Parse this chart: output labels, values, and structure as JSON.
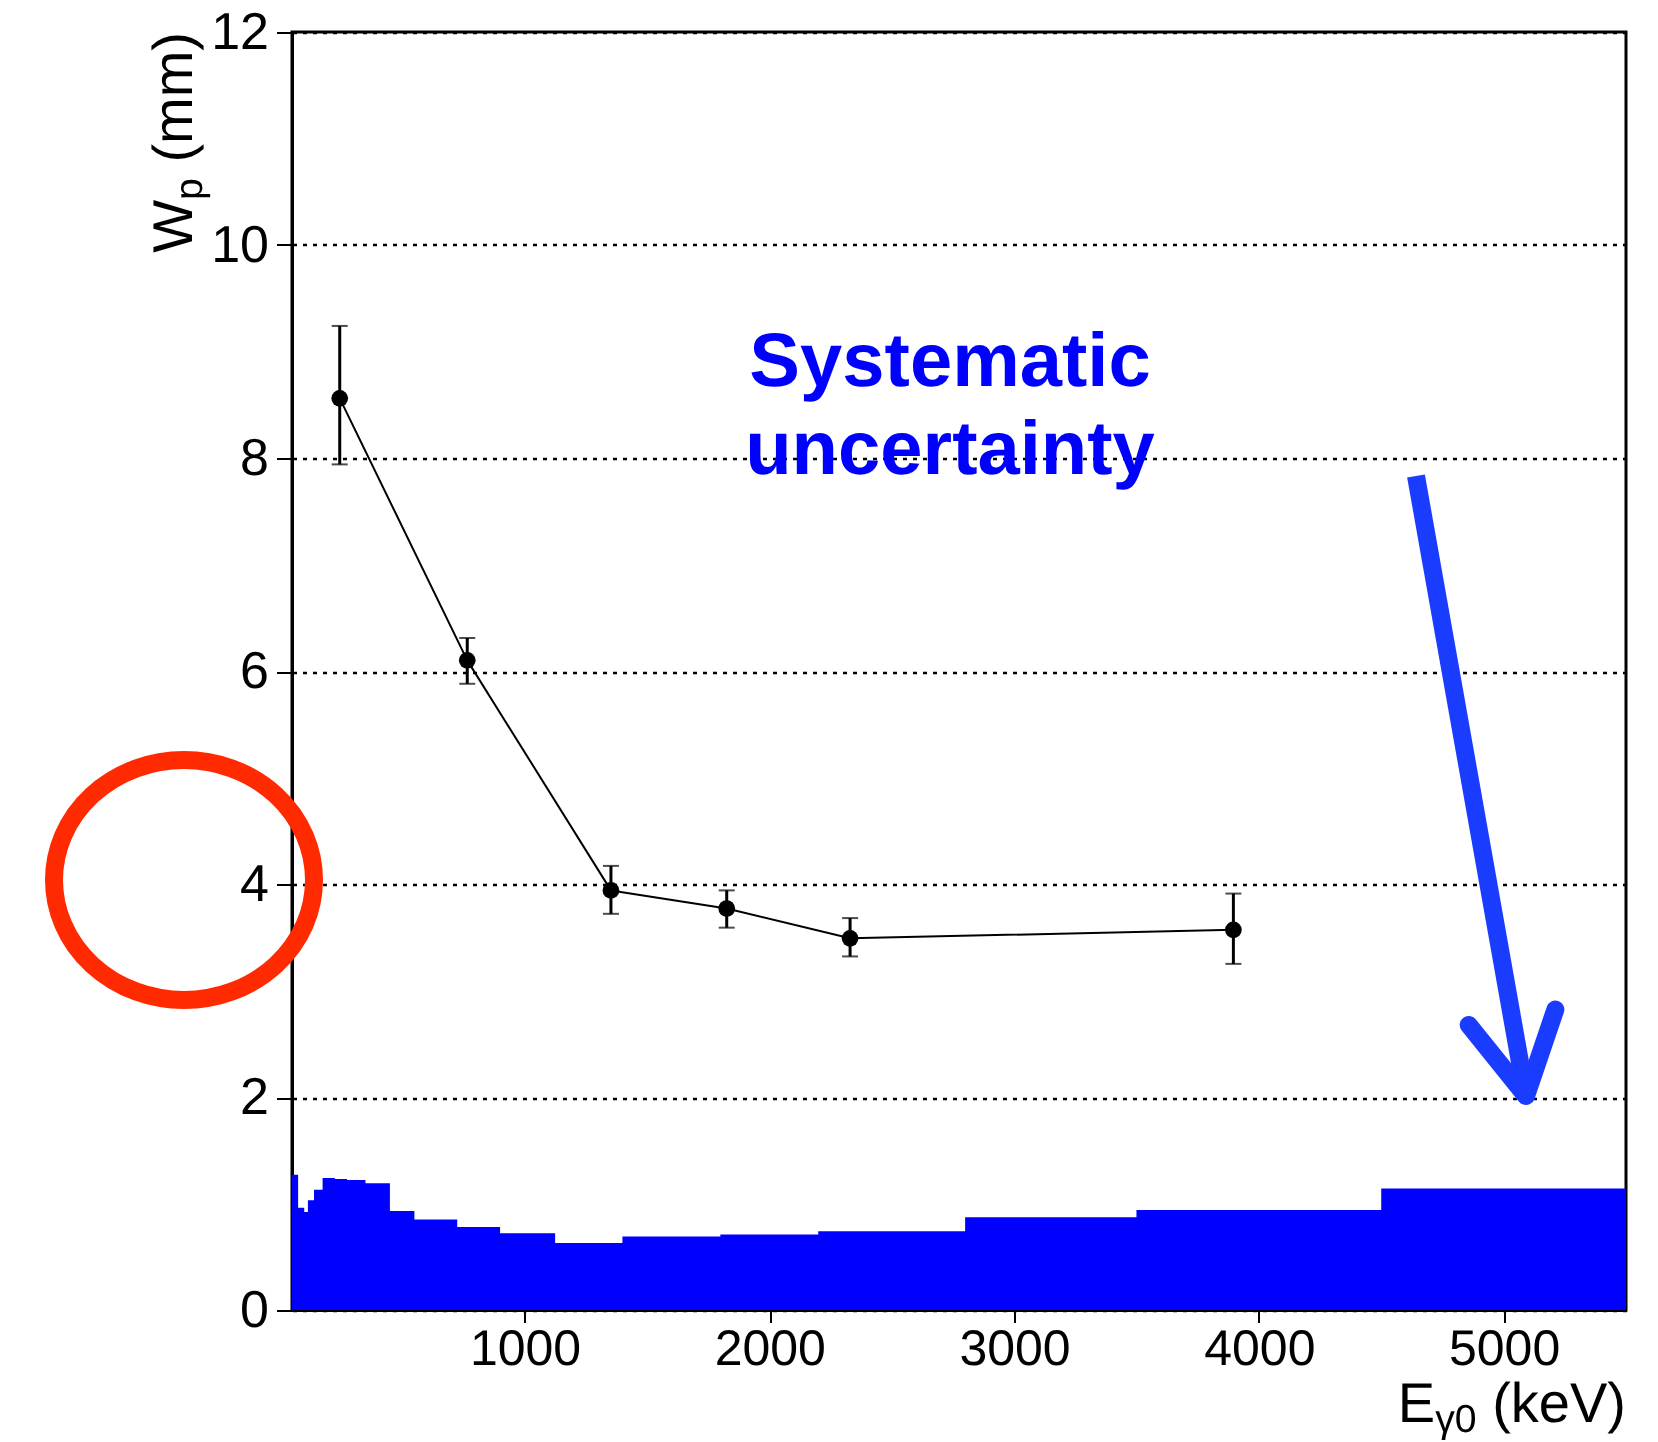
{
  "chart_data": {
    "type": "line",
    "xlabel": "E$_{γ0}$ (keV)",
    "ylabel": "W$_{p}$ (mm)",
    "xlim": [
      50,
      5500
    ],
    "xticks": [
      1000,
      2000,
      3000,
      4000,
      5000
    ],
    "ylim": [
      0,
      12
    ],
    "yticks": [
      0,
      2,
      4,
      6,
      8,
      10,
      12
    ],
    "grid": "y",
    "series": [
      {
        "type": "area",
        "color": "#0000ff",
        "x": [
          50,
          75,
          100,
          115,
          140,
          175,
          225,
          275,
          350,
          450,
          550,
          725,
          900,
          1125,
          1400,
          1800,
          2200,
          2800,
          3500,
          4500,
          5500
        ],
        "values": [
          1.27,
          0.96,
          0.92,
          1.03,
          1.13,
          1.24,
          1.23,
          1.22,
          1.19,
          0.93,
          0.85,
          0.78,
          0.72,
          0.63,
          0.69,
          0.71,
          0.74,
          0.87,
          0.94,
          1.14,
          1.14
        ]
      },
      {
        "type": "line",
        "color": "#000000",
        "marker": "circle",
        "x": [
          245,
          766,
          1353,
          1826,
          2330,
          3896
        ],
        "values": [
          8.56,
          6.1,
          3.94,
          3.77,
          3.49,
          3.57
        ],
        "errors": [
          [
            7.94,
            9.24
          ],
          [
            5.88,
            6.31
          ],
          [
            3.72,
            4.17
          ],
          [
            3.59,
            3.94
          ],
          [
            3.32,
            3.68
          ],
          [
            3.25,
            3.91
          ]
        ]
      }
    ],
    "annotations": [
      "Systematic\nuncertainty"
    ]
  }
}
